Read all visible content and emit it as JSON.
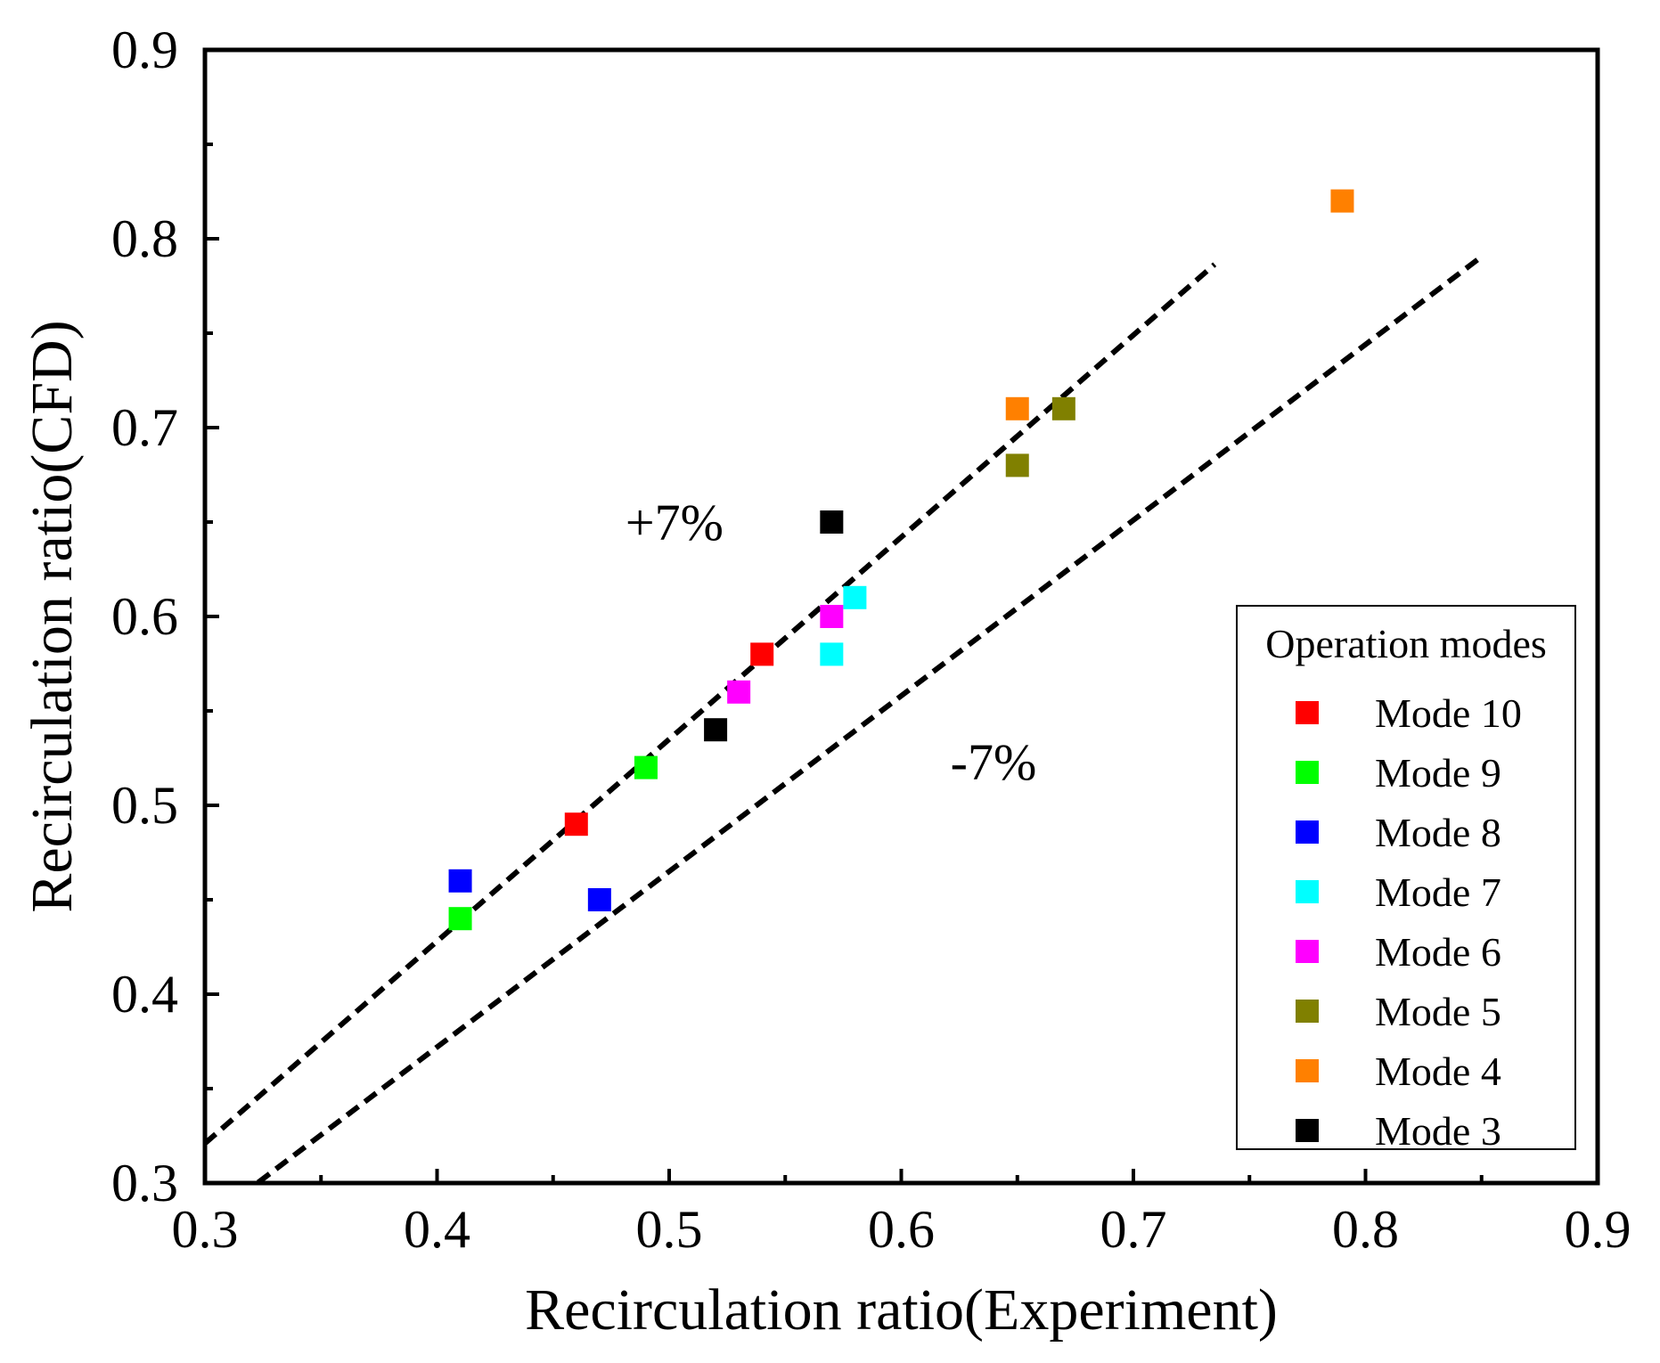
{
  "chart_data": {
    "type": "scatter",
    "xlabel": "Recirculation ratio(Experiment)",
    "ylabel": "Recirculation ratio(CFD)",
    "xlim": [
      0.3,
      0.9
    ],
    "ylim": [
      0.3,
      0.9
    ],
    "xticks": [
      "0.3",
      "0.4",
      "0.5",
      "0.6",
      "0.7",
      "0.8",
      "0.9"
    ],
    "yticks": [
      "0.3",
      "0.4",
      "0.5",
      "0.6",
      "0.7",
      "0.8",
      "0.9"
    ],
    "legend": {
      "title": "Operation modes",
      "position": "bottom-right"
    },
    "series": [
      {
        "name": "Mode 10",
        "color": "#ff0000",
        "points": [
          [
            0.46,
            0.49
          ],
          [
            0.54,
            0.58
          ]
        ]
      },
      {
        "name": "Mode 9",
        "color": "#00ff00",
        "points": [
          [
            0.41,
            0.44
          ],
          [
            0.49,
            0.52
          ]
        ]
      },
      {
        "name": "Mode 8",
        "color": "#0000ff",
        "points": [
          [
            0.41,
            0.46
          ],
          [
            0.47,
            0.45
          ]
        ]
      },
      {
        "name": "Mode 7",
        "color": "#00ffff",
        "points": [
          [
            0.57,
            0.58
          ],
          [
            0.58,
            0.61
          ]
        ]
      },
      {
        "name": "Mode 6",
        "color": "#ff00ff",
        "points": [
          [
            0.53,
            0.56
          ],
          [
            0.57,
            0.6
          ]
        ]
      },
      {
        "name": "Mode 5",
        "color": "#808000",
        "points": [
          [
            0.65,
            0.68
          ],
          [
            0.67,
            0.71
          ]
        ]
      },
      {
        "name": "Mode 4",
        "color": "#ff8000",
        "points": [
          [
            0.65,
            0.71
          ],
          [
            0.79,
            0.82
          ]
        ]
      },
      {
        "name": "Mode 3",
        "color": "#000000",
        "points": [
          [
            0.52,
            0.54
          ],
          [
            0.57,
            0.65
          ]
        ]
      }
    ],
    "reference_lines": [
      {
        "label": "+7%",
        "slope": 1.07,
        "x_range": [
          0.3,
          0.735
        ]
      },
      {
        "label": "-7%",
        "slope": 0.93,
        "x_range": [
          0.3,
          0.85
        ]
      }
    ],
    "annotations": [
      {
        "text": "+7%",
        "x": 0.485,
        "y": 0.65
      },
      {
        "text": "-7%",
        "x": 0.625,
        "y": 0.523
      }
    ]
  }
}
